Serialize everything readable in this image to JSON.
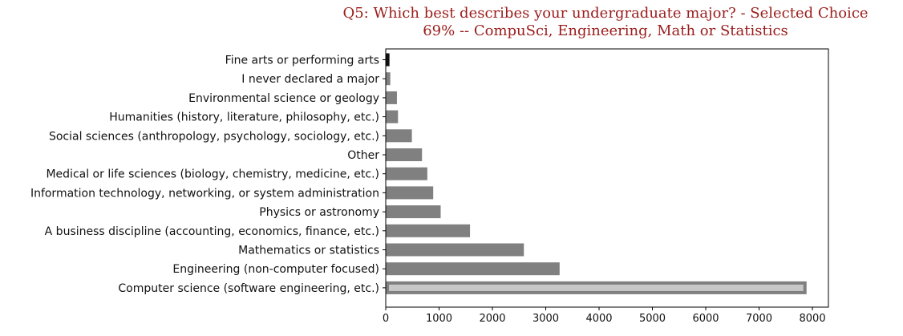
{
  "chart_data": {
    "type": "bar",
    "orientation": "horizontal",
    "title": "Q5: Which best describes your undergraduate major? - Selected Choice",
    "subtitle": "69% -- CompuSci, Engineering, Math or Statistics",
    "xlabel": "",
    "ylabel": "",
    "xlim": [
      0,
      8300
    ],
    "xticks": [
      0,
      1000,
      2000,
      3000,
      4000,
      5000,
      6000,
      7000,
      8000
    ],
    "grid": false,
    "categories": [
      "Fine arts or performing arts",
      "I never declared a major",
      "Environmental science or geology",
      "Humanities (history, literature, philosophy, etc.)",
      "Social sciences (anthropology, psychology, sociology, etc.)",
      "Other",
      "Medical or life sciences (biology, chemistry, medicine, etc.)",
      "Information technology, networking, or system administration",
      "Physics or astronomy",
      "A business discipline (accounting, economics, finance, etc.)",
      "Mathematics or statistics",
      "Engineering (non-computer focused)",
      "Computer science (software engineering, etc.)"
    ],
    "values": [
      70,
      85,
      210,
      230,
      490,
      680,
      780,
      890,
      1030,
      1580,
      2590,
      3260,
      7890
    ],
    "colors": {
      "bar": "#808080",
      "highlight_fill": "#c8c8c8",
      "highlight_edge": "#808080",
      "first_bar": "#111111",
      "title": "#9b1c1c",
      "axis": "#000000"
    },
    "highlighted_category": "Computer science (software engineering, etc.)"
  }
}
